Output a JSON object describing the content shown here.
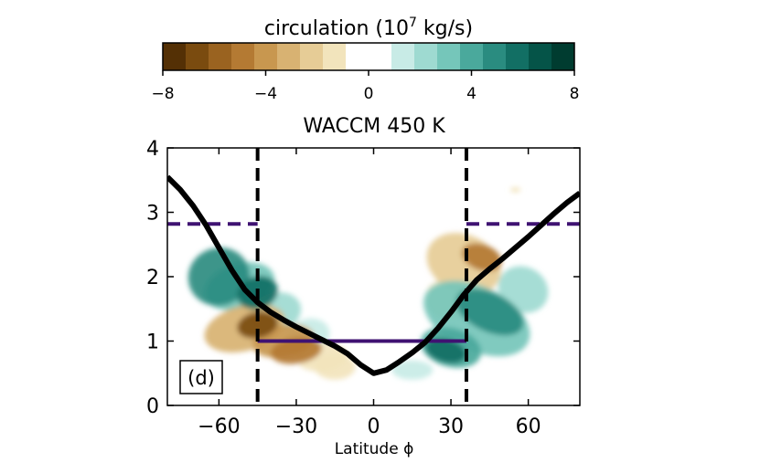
{
  "colorbar": {
    "label_main": "circulation (10",
    "label_exp": "7",
    "label_unit": " kg/s)",
    "ticks": [
      "−8",
      "−4",
      "0",
      "4",
      "8"
    ],
    "tick_values": [
      -8,
      -4,
      0,
      4,
      8
    ],
    "range": [
      -8,
      8
    ],
    "colors": [
      "#543005",
      "#7a4b0f",
      "#9a6320",
      "#b47a33",
      "#c8974f",
      "#d8b272",
      "#e6cc96",
      "#f2e4bc",
      "#ffffff",
      "#ffffff",
      "#c8ebe6",
      "#9edad1",
      "#75c6ba",
      "#4aa99c",
      "#2a8c80",
      "#126f64",
      "#055448",
      "#003c30"
    ]
  },
  "chart_data": {
    "type": "filled-contour",
    "title": "WACCM 450 K",
    "xlabel": "Latitude ϕ",
    "ylabel": "",
    "xlim": [
      -80,
      80
    ],
    "ylim": [
      0,
      4
    ],
    "xticks": [
      -60,
      -30,
      0,
      30,
      60
    ],
    "xtick_labels": [
      "−60",
      "−30",
      "0",
      "30",
      "60"
    ],
    "yticks": [
      0,
      1,
      2,
      3,
      4
    ],
    "ytick_labels": [
      "0",
      "1",
      "2",
      "3",
      "4"
    ],
    "panel_label": "(d)",
    "black_curve": {
      "x": [
        -80,
        -75,
        -70,
        -65,
        -60,
        -55,
        -50,
        -45,
        -40,
        -35,
        -30,
        -25,
        -20,
        -15,
        -10,
        -5,
        0,
        5,
        10,
        15,
        20,
        25,
        30,
        35,
        40,
        45,
        50,
        55,
        60,
        65,
        70,
        75,
        80
      ],
      "y": [
        3.55,
        3.35,
        3.1,
        2.8,
        2.45,
        2.1,
        1.8,
        1.6,
        1.45,
        1.33,
        1.22,
        1.12,
        1.02,
        0.92,
        0.8,
        0.63,
        0.5,
        0.55,
        0.68,
        0.82,
        0.98,
        1.2,
        1.45,
        1.72,
        1.95,
        2.12,
        2.28,
        2.45,
        2.62,
        2.8,
        2.98,
        3.15,
        3.3
      ]
    },
    "vertical_dashed_lines_x": [
      -45,
      36
    ],
    "purple_solid_segment": {
      "x": [
        -45,
        36
      ],
      "y": 1.0
    },
    "purple_dashed_segments": [
      {
        "x": [
          -80,
          -45
        ],
        "y": 2.82
      },
      {
        "x": [
          36,
          80
        ],
        "y": 2.82
      }
    ],
    "contour_cells": [
      {
        "lat": -60,
        "z": 2.0,
        "rx": 12,
        "ry": 0.45,
        "rot": -18,
        "value": 4.5
      },
      {
        "lat": -52,
        "z": 1.85,
        "rx": 14,
        "ry": 0.35,
        "rot": -18,
        "value": 3
      },
      {
        "lat": -45,
        "z": 1.75,
        "rx": 8,
        "ry": 0.25,
        "rot": -18,
        "value": 6
      },
      {
        "lat": -38,
        "z": 1.45,
        "rx": 10,
        "ry": 0.3,
        "rot": -15,
        "value": 2
      },
      {
        "lat": -25,
        "z": 1.1,
        "rx": 8,
        "ry": 0.25,
        "rot": -10,
        "value": 1.5
      },
      {
        "lat": -50,
        "z": 1.2,
        "rx": 16,
        "ry": 0.35,
        "rot": -15,
        "value": -3
      },
      {
        "lat": -45,
        "z": 1.25,
        "rx": 8,
        "ry": 0.2,
        "rot": -12,
        "value": -7
      },
      {
        "lat": -35,
        "z": 1.0,
        "rx": 12,
        "ry": 0.25,
        "rot": -10,
        "value": -4
      },
      {
        "lat": -30,
        "z": 0.85,
        "rx": 10,
        "ry": 0.2,
        "rot": -8,
        "value": -5
      },
      {
        "lat": -20,
        "z": 0.75,
        "rx": 10,
        "ry": 0.22,
        "rot": -5,
        "value": -1.5
      },
      {
        "lat": -15,
        "z": 0.6,
        "rx": 8,
        "ry": 0.2,
        "rot": 0,
        "value": -1
      },
      {
        "lat": 35,
        "z": 2.2,
        "rx": 15,
        "ry": 0.45,
        "rot": 25,
        "value": -2
      },
      {
        "lat": 42,
        "z": 2.3,
        "rx": 8,
        "ry": 0.2,
        "rot": 20,
        "value": -5
      },
      {
        "lat": 28,
        "z": 1.65,
        "rx": 8,
        "ry": 0.3,
        "rot": 30,
        "value": -1.5
      },
      {
        "lat": 55,
        "z": 3.35,
        "rx": 2,
        "ry": 0.04,
        "rot": 0,
        "value": -1.5
      },
      {
        "lat": 40,
        "z": 1.35,
        "rx": 22,
        "ry": 0.5,
        "rot": 25,
        "value": 3
      },
      {
        "lat": 45,
        "z": 1.45,
        "rx": 14,
        "ry": 0.3,
        "rot": 25,
        "value": 5
      },
      {
        "lat": 30,
        "z": 0.9,
        "rx": 12,
        "ry": 0.3,
        "rot": 15,
        "value": 4
      },
      {
        "lat": 28,
        "z": 0.85,
        "rx": 8,
        "ry": 0.18,
        "rot": 15,
        "value": 6
      },
      {
        "lat": 58,
        "z": 1.8,
        "rx": 10,
        "ry": 0.35,
        "rot": 30,
        "value": 2
      },
      {
        "lat": 15,
        "z": 0.55,
        "rx": 8,
        "ry": 0.15,
        "rot": 0,
        "value": 1.5
      }
    ]
  }
}
